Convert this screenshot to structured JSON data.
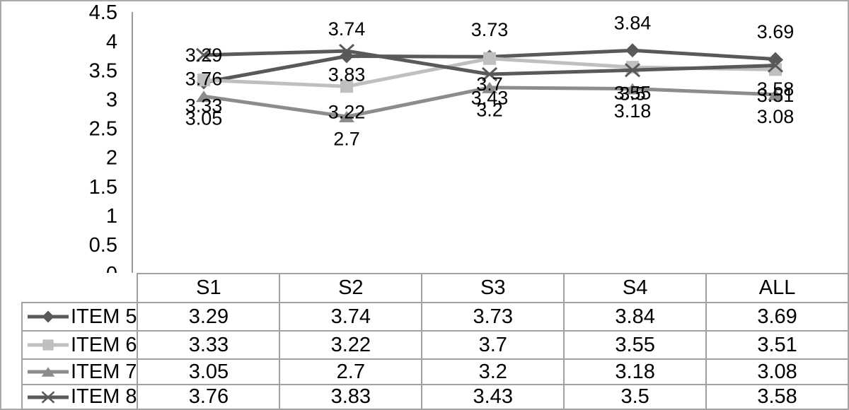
{
  "chart_data": {
    "type": "line",
    "title": "",
    "xlabel": "",
    "ylabel": "",
    "categories": [
      "S1",
      "S2",
      "S3",
      "S4",
      "ALL"
    ],
    "series": [
      {
        "name": "ITEM 5",
        "marker": "diamond",
        "color": "#595959",
        "label_offset_y": -39,
        "values": [
          3.29,
          3.74,
          3.73,
          3.84,
          3.69
        ]
      },
      {
        "name": "ITEM 6",
        "marker": "square",
        "color": "#bfbfbf",
        "label_offset_y": 36,
        "values": [
          3.33,
          3.22,
          3.7,
          3.55,
          3.51
        ]
      },
      {
        "name": "ITEM 7",
        "marker": "triangle",
        "color": "#8c8c8c",
        "label_offset_y": 31,
        "values": [
          3.05,
          2.7,
          3.2,
          3.18,
          3.08
        ]
      },
      {
        "name": "ITEM 8",
        "marker": "x",
        "color": "#595959",
        "label_offset_y": 33,
        "values": [
          3.76,
          3.83,
          3.43,
          3.5,
          3.58
        ]
      }
    ],
    "ylim": [
      0,
      4.5
    ],
    "y_ticks": [
      4.5,
      4,
      3.5,
      3,
      2.5,
      2,
      1.5,
      1,
      0.5,
      0
    ],
    "gridlines": false,
    "data_labels": true,
    "legend_position": "data-table-left-column",
    "colors": {
      "axis_line": "#9a9a9a",
      "table_border": "#a1a1a1",
      "text": "#000000",
      "background": "#ffffff"
    }
  }
}
